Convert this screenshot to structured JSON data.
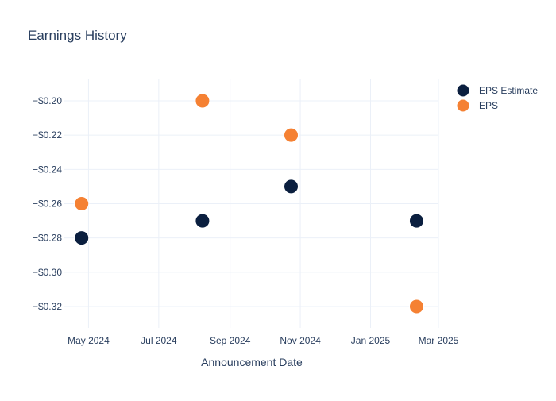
{
  "chart_data": {
    "type": "scatter",
    "title": "Earnings History",
    "xlabel": "Announcement Date",
    "ylabel": "",
    "x_tick_labels": [
      {
        "date": "2024-05-01",
        "label": "May 2024"
      },
      {
        "date": "2024-07-01",
        "label": "Jul 2024"
      },
      {
        "date": "2024-09-01",
        "label": "Sep 2024"
      },
      {
        "date": "2024-11-01",
        "label": "Nov 2024"
      },
      {
        "date": "2025-01-01",
        "label": "Jan 2025"
      },
      {
        "date": "2025-03-01",
        "label": "Mar 2025"
      }
    ],
    "y_ticks": [
      {
        "value": -0.2,
        "label": "−$0.20"
      },
      {
        "value": -0.22,
        "label": "−$0.22"
      },
      {
        "value": -0.24,
        "label": "−$0.24"
      },
      {
        "value": -0.26,
        "label": "−$0.26"
      },
      {
        "value": -0.28,
        "label": "−$0.28"
      },
      {
        "value": -0.3,
        "label": "−$0.30"
      },
      {
        "value": -0.32,
        "label": "−$0.32"
      }
    ],
    "xlim": [
      "2024-04-10",
      "2025-03-01"
    ],
    "ylim": [
      -0.3325,
      -0.1875
    ],
    "grid": true,
    "legend_position": "top-right",
    "series": [
      {
        "name": "EPS Estimate",
        "color": "#0b1f3f",
        "points": [
          {
            "x": "2024-04-25",
            "y": -0.28
          },
          {
            "x": "2024-08-08",
            "y": -0.27
          },
          {
            "x": "2024-10-24",
            "y": -0.25
          },
          {
            "x": "2025-02-10",
            "y": -0.27
          }
        ]
      },
      {
        "name": "EPS",
        "color": "#f58133",
        "points": [
          {
            "x": "2024-04-25",
            "y": -0.26
          },
          {
            "x": "2024-08-08",
            "y": -0.2
          },
          {
            "x": "2024-10-24",
            "y": -0.22
          },
          {
            "x": "2025-02-10",
            "y": -0.32
          }
        ]
      }
    ]
  }
}
